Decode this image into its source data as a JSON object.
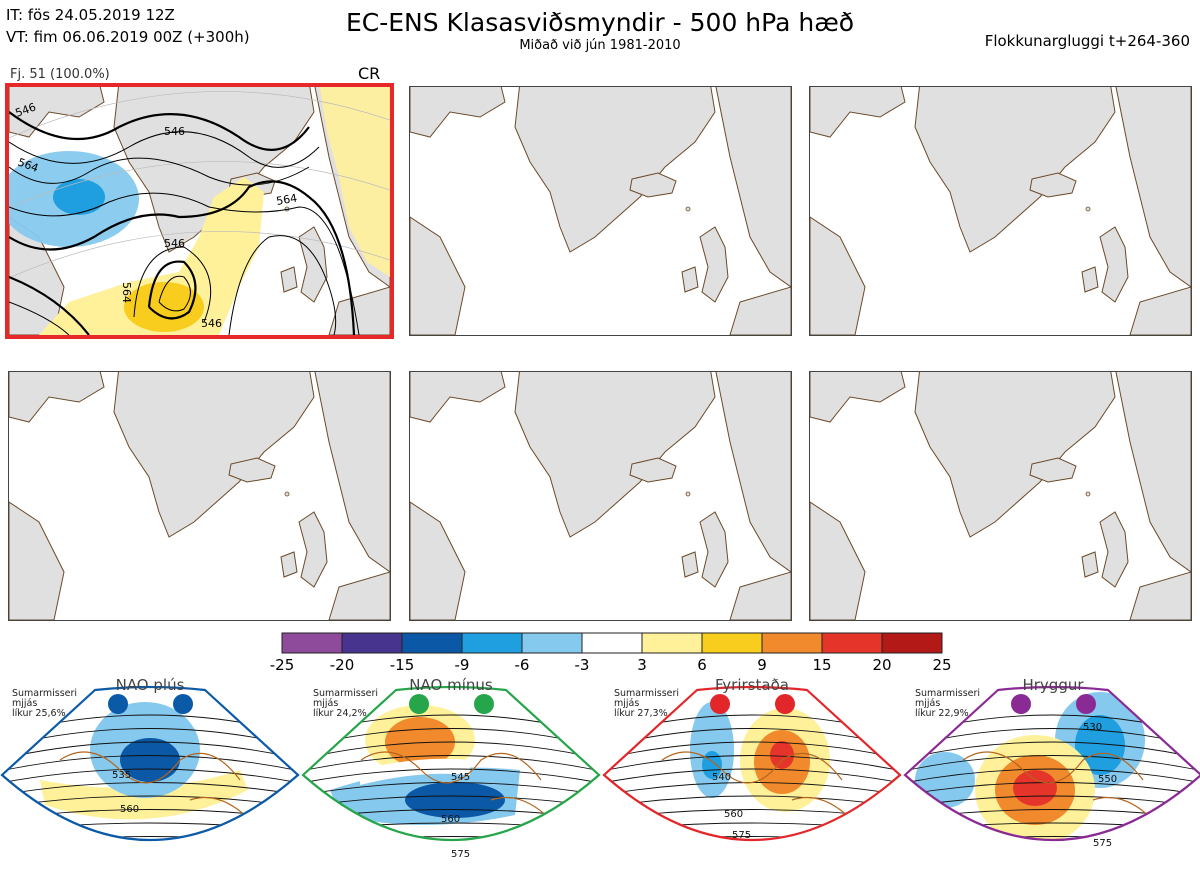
{
  "header": {
    "it_line": "IT: fös 24.05.2019 12Z",
    "vt_line": "VT: fim 06.06.2019 00Z  (+300h)",
    "title": "EC-ENS Klasasviðsmyndir - 500 hPa hæð",
    "subtitle": "Miðað við jún 1981-2010",
    "right": "Flokkunargluggi t+264-360"
  },
  "panels": [
    {
      "label": "Fj. 51 (100.0%)",
      "tag": "CR",
      "highlighted": true
    },
    {
      "label": "",
      "tag": "",
      "highlighted": false
    },
    {
      "label": "",
      "tag": "",
      "highlighted": false
    },
    {
      "label": "",
      "tag": "",
      "highlighted": false
    },
    {
      "label": "",
      "tag": "",
      "highlighted": false
    },
    {
      "label": "",
      "tag": "",
      "highlighted": false
    }
  ],
  "panel1_contour_labels": [
    "546",
    "564",
    "546",
    "564",
    "546",
    "564",
    "546"
  ],
  "colorbar": {
    "ticks": [
      "-25",
      "-20",
      "-15",
      "-9",
      "-6",
      "-3",
      "3",
      "6",
      "9",
      "15",
      "20",
      "25"
    ],
    "colors": [
      "#8e4a9b",
      "#46348f",
      "#0b58a6",
      "#1f9ee0",
      "#86c9ee",
      "#ffffff",
      "#fff19a",
      "#f9cd1e",
      "#f08a2c",
      "#e5352a",
      "#b31a17"
    ]
  },
  "regimes": [
    {
      "name": "NAO plús",
      "note": [
        "Sumarmisseri",
        "mjjás",
        "líkur 25,6%"
      ],
      "color": "#0b5aa8",
      "labels": [
        "535",
        "560"
      ]
    },
    {
      "name": "NAO mínus",
      "note": [
        "Sumarmisseri",
        "mjjás",
        "líkur 24,2%"
      ],
      "color": "#26a54a",
      "labels": [
        "545",
        "560",
        "575"
      ]
    },
    {
      "name": "Fyrirstaða",
      "note": [
        "Sumarmisseri",
        "mjjás",
        "líkur 27,3%"
      ],
      "color": "#e3262a",
      "labels": [
        "540",
        "560",
        "575"
      ]
    },
    {
      "name": "Hryggur",
      "note": [
        "Sumarmisseri",
        "mjjás",
        "líkur 22,9%"
      ],
      "color": "#8a2a94",
      "labels": [
        "530",
        "550",
        "575"
      ]
    }
  ],
  "chart_data": {
    "type": "heatmap",
    "title": "EC-ENS Klasasviðsmyndir - 500 hPa hæð",
    "subtitle": "Miðað við jún 1981-2010",
    "colorbar_ticks": [
      -25,
      -20,
      -15,
      -9,
      -6,
      -3,
      3,
      6,
      9,
      15,
      20,
      25
    ],
    "clusters": [
      {
        "label": "Fj. 51 (100.0%)",
        "regime": "CR"
      }
    ],
    "regime_probabilities": [
      {
        "regime": "NAO plús",
        "percent": 25.6
      },
      {
        "regime": "NAO mínus",
        "percent": 24.2
      },
      {
        "regime": "Fyrirstaða",
        "percent": 27.3
      },
      {
        "regime": "Hryggur",
        "percent": 22.9
      }
    ]
  }
}
